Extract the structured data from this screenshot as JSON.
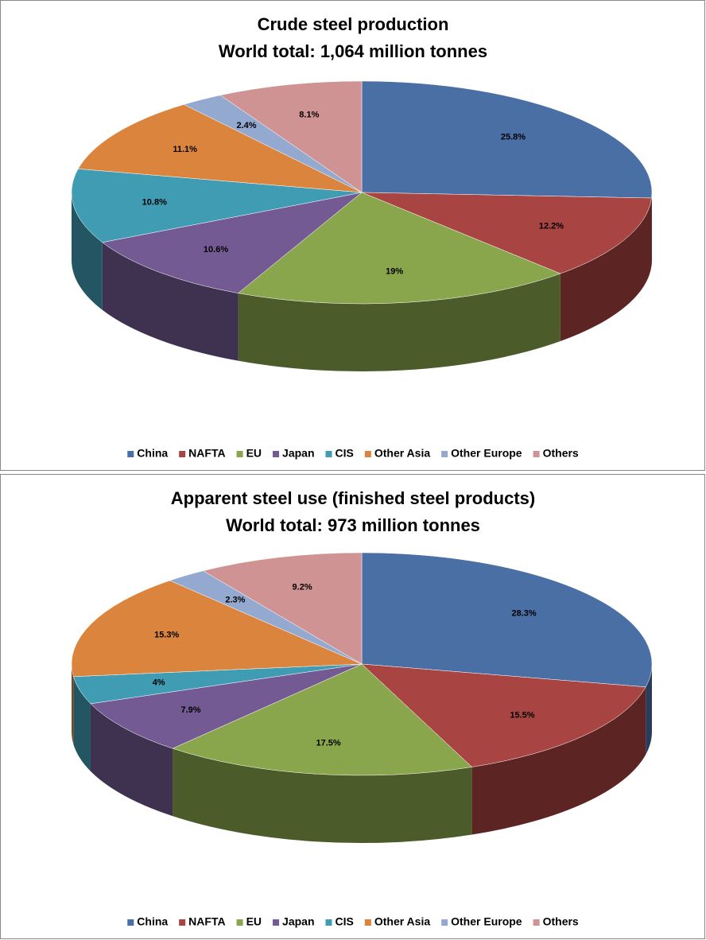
{
  "chart_data": [
    {
      "type": "pie",
      "title": "Crude steel production",
      "subtitle": "World total: 1,064 million tonnes",
      "categories": [
        "China",
        "NAFTA",
        "EU",
        "Japan",
        "CIS",
        "Other Asia",
        "Other Europe",
        "Others"
      ],
      "values": [
        25.8,
        12.2,
        19,
        10.6,
        10.8,
        11.1,
        2.4,
        8.1
      ],
      "value_labels": [
        "25.8%",
        "12.2%",
        "19%",
        "10.6%",
        "10.8%",
        "11.1%",
        "2.4%",
        "8.1%"
      ],
      "colors": [
        "#4a6fa5",
        "#a84442",
        "#8aa64d",
        "#735a93",
        "#3f9cb3",
        "#db843d",
        "#93a9cf",
        "#d09393"
      ]
    },
    {
      "type": "pie",
      "title": "Apparent steel use (finished steel products)",
      "subtitle": "World total: 973 million tonnes",
      "categories": [
        "China",
        "NAFTA",
        "EU",
        "Japan",
        "CIS",
        "Other Asia",
        "Other Europe",
        "Others"
      ],
      "values": [
        28.3,
        15.5,
        17.5,
        7.9,
        4,
        15.3,
        2.3,
        9.2
      ],
      "value_labels": [
        "28.3%",
        "15.5%",
        "17.5%",
        "7.9%",
        "4%",
        "15.3%",
        "2.3%",
        "9.2%"
      ],
      "colors": [
        "#4a6fa5",
        "#a84442",
        "#8aa64d",
        "#735a93",
        "#3f9cb3",
        "#db843d",
        "#93a9cf",
        "#d09393"
      ]
    }
  ]
}
